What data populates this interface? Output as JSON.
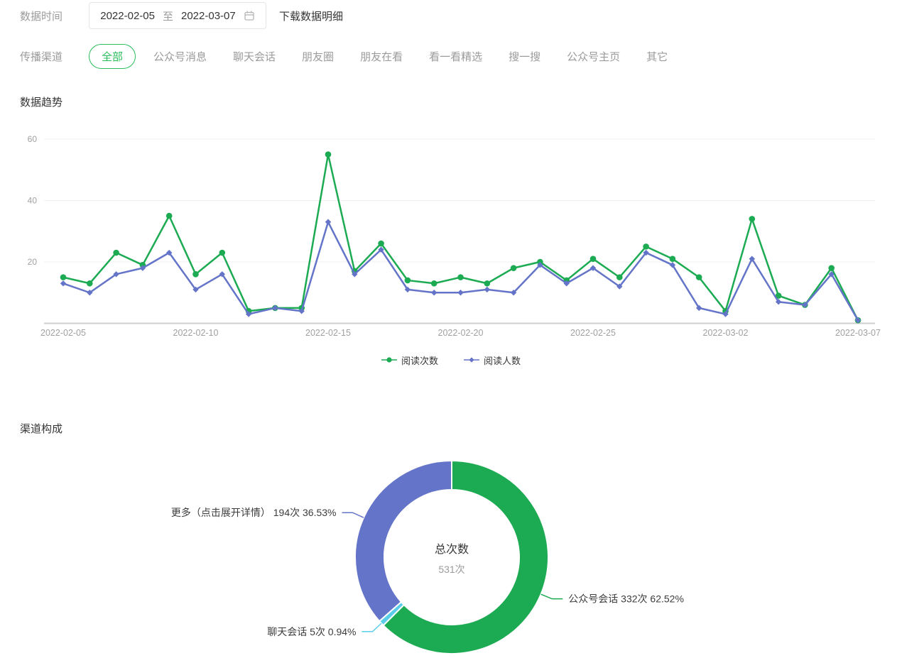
{
  "filters": {
    "date_label": "数据时间",
    "date_start": "2022-02-05",
    "date_separator": "至",
    "date_end": "2022-03-07",
    "download_label": "下载数据明细",
    "channel_label": "传播渠道"
  },
  "channels": {
    "tabs": [
      {
        "label": "全部",
        "active": true
      },
      {
        "label": "公众号消息",
        "active": false
      },
      {
        "label": "聊天会话",
        "active": false
      },
      {
        "label": "朋友圈",
        "active": false
      },
      {
        "label": "朋友在看",
        "active": false
      },
      {
        "label": "看一看精选",
        "active": false
      },
      {
        "label": "搜一搜",
        "active": false
      },
      {
        "label": "公众号主页",
        "active": false
      },
      {
        "label": "其它",
        "active": false
      }
    ]
  },
  "colors": {
    "green": "#1cab52",
    "purple": "#6474c8",
    "cyan": "#5acde8",
    "pill_green": "#2bbd5b",
    "dark_text": "#353535",
    "gray_text": "#9b9b9b",
    "axis_label": "#a0a0a0",
    "grid_line": "#f0f0f0",
    "axis_line": "#cfcfcf"
  },
  "chart_data": [
    {
      "type": "line",
      "title": "数据趋势",
      "x": [
        "2022-02-05",
        "2022-02-06",
        "2022-02-07",
        "2022-02-08",
        "2022-02-09",
        "2022-02-10",
        "2022-02-11",
        "2022-02-12",
        "2022-02-13",
        "2022-02-14",
        "2022-02-15",
        "2022-02-16",
        "2022-02-17",
        "2022-02-18",
        "2022-02-19",
        "2022-02-20",
        "2022-02-21",
        "2022-02-22",
        "2022-02-23",
        "2022-02-24",
        "2022-02-25",
        "2022-02-26",
        "2022-02-27",
        "2022-02-28",
        "2022-03-01",
        "2022-03-02",
        "2022-03-03",
        "2022-03-04",
        "2022-03-05",
        "2022-03-06",
        "2022-03-07"
      ],
      "x_tick_labels": [
        "2022-02-05",
        "2022-02-10",
        "2022-02-15",
        "2022-02-20",
        "2022-02-25",
        "2022-03-02",
        "2022-03-07"
      ],
      "x_tick_indices": [
        0,
        5,
        10,
        15,
        20,
        25,
        30
      ],
      "ylim": [
        0,
        60
      ],
      "yticks": [
        20,
        40,
        60
      ],
      "grid": true,
      "legend_position": "bottom",
      "series": [
        {
          "name": "阅读次数",
          "color": "#1cab52",
          "marker": "circle",
          "values": [
            15,
            13,
            23,
            19,
            35,
            16,
            23,
            4,
            5,
            5,
            55,
            17,
            26,
            14,
            13,
            15,
            13,
            18,
            20,
            14,
            21,
            15,
            25,
            21,
            15,
            4,
            34,
            9,
            6,
            18,
            1
          ]
        },
        {
          "name": "阅读人数",
          "color": "#6474c8",
          "marker": "diamond",
          "values": [
            13,
            10,
            16,
            18,
            23,
            11,
            16,
            3,
            5,
            4,
            33,
            16,
            24,
            11,
            10,
            10,
            11,
            10,
            19,
            13,
            18,
            12,
            23,
            19,
            5,
            3,
            21,
            7,
            6,
            16,
            1
          ]
        }
      ]
    },
    {
      "type": "pie",
      "title": "渠道构成",
      "donut": true,
      "center": {
        "label": "总次数",
        "value": "531次"
      },
      "slices": [
        {
          "name": "公众号会话",
          "value": 332,
          "count": "332次",
          "pct": "62.52%",
          "color": "#1cab52"
        },
        {
          "name": "聊天会话",
          "value": 5,
          "count": "5次",
          "pct": "0.94%",
          "color": "#5acde8"
        },
        {
          "name": "更多（点击展开详情）",
          "value": 194,
          "count": "194次",
          "pct": "36.53%",
          "color": "#6474c8"
        }
      ]
    }
  ]
}
